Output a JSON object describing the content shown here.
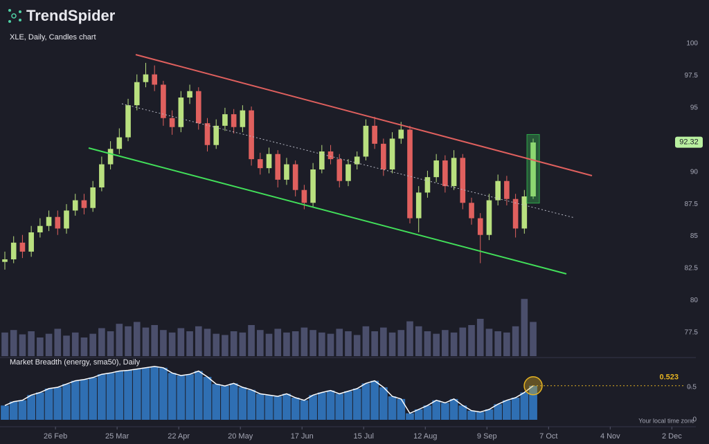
{
  "header": {
    "brand": "TrendSpider"
  },
  "chart_data": [
    {
      "type": "candlestick",
      "title": "XLE, Daily, Candles chart",
      "x": [
        34,
        38,
        42,
        46,
        50,
        54,
        58,
        62,
        66,
        70,
        74,
        78,
        82,
        86,
        90,
        94,
        98,
        102,
        106,
        110,
        114,
        118,
        122,
        126,
        130,
        134,
        138,
        142,
        146,
        150,
        154,
        158,
        162,
        166,
        170,
        174,
        178,
        182,
        186,
        190,
        194,
        198,
        202,
        206,
        210,
        214,
        218,
        222,
        226,
        230,
        234,
        238,
        242,
        246,
        250,
        254,
        258,
        262,
        266,
        270,
        274
      ],
      "open": [
        83.0,
        83.2,
        84.5,
        83.8,
        85.3,
        85.8,
        86.5,
        85.6,
        87.0,
        87.8,
        87.2,
        88.8,
        90.6,
        91.8,
        92.7,
        95.2,
        97.0,
        97.6,
        96.8,
        94.2,
        93.5,
        95.8,
        96.3,
        93.8,
        92.1,
        93.6,
        94.5,
        93.5,
        94.8,
        91.0,
        90.3,
        91.4,
        89.4,
        90.6,
        88.6,
        87.6,
        90.2,
        91.6,
        91.0,
        89.3,
        90.6,
        91.2,
        93.6,
        92.2,
        90.2,
        92.6,
        93.3,
        86.4,
        88.4,
        89.6,
        90.9,
        88.9,
        91.1,
        87.6,
        86.4,
        85.1,
        87.8,
        89.3,
        87.9,
        85.6,
        88.1
      ],
      "high": [
        83.8,
        85.0,
        85.1,
        85.8,
        86.4,
        87.0,
        87.0,
        87.5,
        88.3,
        88.3,
        89.3,
        91.2,
        92.4,
        93.4,
        95.7,
        97.6,
        98.5,
        98.3,
        97.1,
        94.8,
        96.3,
        96.8,
        96.6,
        94.2,
        94.1,
        95.0,
        94.9,
        95.2,
        95.1,
        91.5,
        91.9,
        91.7,
        91.1,
        90.9,
        89.0,
        90.7,
        92.1,
        92.1,
        91.4,
        91.0,
        91.6,
        94.1,
        94.3,
        92.6,
        93.1,
        93.9,
        93.6,
        88.9,
        90.1,
        91.4,
        91.3,
        91.7,
        91.4,
        88.0,
        86.8,
        88.3,
        89.8,
        89.7,
        88.3,
        88.6,
        92.6
      ],
      "low": [
        82.4,
        82.9,
        83.3,
        83.4,
        84.9,
        85.4,
        85.1,
        85.2,
        86.6,
        86.7,
        86.9,
        88.5,
        90.2,
        91.4,
        92.4,
        94.8,
        96.6,
        96.3,
        93.6,
        92.9,
        93.1,
        95.3,
        93.3,
        91.6,
        91.8,
        93.2,
        93.0,
        93.1,
        90.5,
        89.8,
        89.9,
        88.8,
        89.0,
        88.1,
        87.1,
        87.3,
        89.9,
        90.6,
        88.8,
        88.9,
        90.2,
        90.9,
        91.8,
        89.7,
        89.9,
        92.2,
        86.0,
        85.3,
        88.0,
        89.2,
        88.4,
        88.6,
        87.1,
        85.9,
        82.9,
        84.7,
        87.4,
        87.4,
        84.9,
        85.2,
        87.9
      ],
      "close": [
        83.2,
        84.5,
        83.8,
        85.3,
        85.8,
        86.5,
        85.6,
        87.0,
        87.8,
        87.2,
        88.8,
        90.6,
        91.8,
        92.7,
        95.2,
        97.0,
        97.6,
        96.8,
        94.2,
        93.5,
        95.8,
        96.3,
        93.8,
        92.1,
        93.6,
        94.5,
        93.5,
        94.8,
        91.0,
        90.3,
        91.4,
        89.4,
        90.6,
        88.6,
        87.6,
        90.2,
        91.6,
        91.0,
        89.3,
        90.6,
        91.2,
        93.6,
        92.2,
        90.2,
        92.6,
        93.3,
        86.4,
        88.4,
        89.6,
        90.9,
        88.9,
        91.1,
        87.6,
        86.4,
        85.1,
        87.8,
        89.3,
        87.9,
        85.6,
        88.1,
        92.3
      ],
      "volume": [
        38,
        42,
        35,
        40,
        30,
        36,
        44,
        33,
        38,
        30,
        36,
        45,
        40,
        52,
        48,
        55,
        46,
        50,
        42,
        38,
        45,
        40,
        48,
        44,
        36,
        34,
        40,
        38,
        50,
        42,
        36,
        44,
        38,
        40,
        46,
        42,
        38,
        36,
        44,
        40,
        34,
        48,
        40,
        46,
        38,
        42,
        56,
        48,
        40,
        36,
        42,
        38,
        46,
        50,
        60,
        44,
        40,
        38,
        48,
        92,
        55
      ],
      "last_price": 92.32,
      "up_color": "#b9e07f",
      "down_color": "#e0605e",
      "volume_color": "#4b4f6c",
      "xlim": [
        31.8,
        347.9
      ],
      "ylim": [
        75.66,
        101.24
      ],
      "vlim": [
        0,
        100
      ],
      "yticks": [
        100,
        97.5,
        95,
        92.5,
        90,
        87.5,
        85,
        82.5,
        80,
        77.5
      ]
    },
    {
      "type": "breadth",
      "title": "Market Breadth (energy, sma50), Daily",
      "x": [
        34,
        38,
        42,
        46,
        50,
        54,
        58,
        62,
        66,
        70,
        74,
        78,
        82,
        86,
        90,
        94,
        98,
        102,
        106,
        110,
        114,
        118,
        122,
        126,
        130,
        134,
        138,
        142,
        146,
        150,
        154,
        158,
        162,
        166,
        170,
        174,
        178,
        182,
        186,
        190,
        194,
        198,
        202,
        206,
        210,
        214,
        218,
        222,
        226,
        230,
        234,
        238,
        242,
        246,
        250,
        254,
        258,
        262,
        266,
        270,
        274
      ],
      "values": [
        0.22,
        0.28,
        0.3,
        0.38,
        0.42,
        0.48,
        0.5,
        0.55,
        0.6,
        0.62,
        0.65,
        0.7,
        0.72,
        0.75,
        0.76,
        0.78,
        0.8,
        0.82,
        0.8,
        0.72,
        0.68,
        0.7,
        0.75,
        0.66,
        0.55,
        0.52,
        0.56,
        0.5,
        0.46,
        0.4,
        0.38,
        0.36,
        0.4,
        0.34,
        0.3,
        0.38,
        0.42,
        0.45,
        0.4,
        0.44,
        0.48,
        0.56,
        0.6,
        0.5,
        0.36,
        0.32,
        0.1,
        0.16,
        0.22,
        0.3,
        0.26,
        0.32,
        0.22,
        0.14,
        0.12,
        0.16,
        0.24,
        0.3,
        0.34,
        0.42,
        0.523
      ],
      "last_value": 0.523,
      "line_color": "#ffffff",
      "bar_color": "#2f6fb3",
      "marker_color": "#e6b422",
      "xlim": [
        31.8,
        347.9
      ],
      "ylim": [
        0,
        0.925
      ],
      "yticks": [
        0.5,
        0
      ],
      "xticks": [
        {
          "value": 57,
          "label": "26 Feb"
        },
        {
          "value": 85,
          "label": "25 Mar"
        },
        {
          "value": 113,
          "label": "22 Apr"
        },
        {
          "value": 141,
          "label": "20 May"
        },
        {
          "value": 169,
          "label": "17 Jun"
        },
        {
          "value": 197,
          "label": "15 Jul"
        },
        {
          "value": 225,
          "label": "12 Aug"
        },
        {
          "value": 253,
          "label": "9 Sep"
        },
        {
          "value": 281,
          "label": "7 Oct"
        },
        {
          "value": 309,
          "label": "4 Nov"
        },
        {
          "value": 337,
          "label": "2 Dec"
        }
      ],
      "note": "Your local time zone"
    }
  ]
}
